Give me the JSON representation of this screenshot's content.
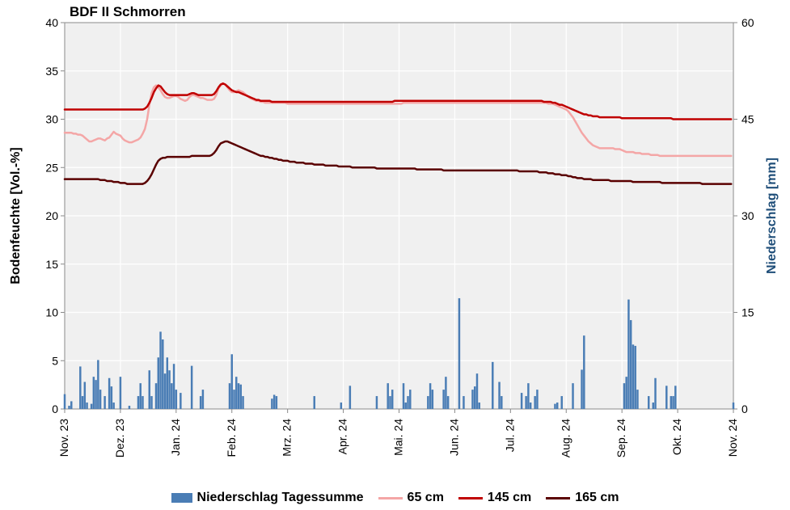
{
  "title": "BDF II Schmorren",
  "y_left": {
    "label": "Bodenfeuchte [Vol.-%]",
    "min": 0,
    "max": 40,
    "step": 5,
    "fontsize": 16,
    "color": "#000000"
  },
  "y_right": {
    "label": "Niederschlag [mm]",
    "min": 0,
    "max": 60,
    "step": 15,
    "fontsize": 16,
    "color": "#1f4e79",
    "tick_color": "#2e5b8a"
  },
  "x": {
    "labels": [
      "Nov. 23",
      "Dez. 23",
      "Jan. 24",
      "Feb. 24",
      "Mrz. 24",
      "Apr. 24",
      "Mai. 24",
      "Jun. 24",
      "Jul. 24",
      "Aug. 24",
      "Sep. 24",
      "Okt. 24",
      "Nov. 24"
    ],
    "fontsize": 14
  },
  "plot": {
    "bg": "#f0f0f0",
    "grid": "#ffffff"
  },
  "legend": {
    "bar_label": "Niederschlag Tagessumme",
    "series": [
      {
        "label": "65 cm",
        "color": "#f4a6a6"
      },
      {
        "label": "145 cm",
        "color": "#c00000"
      },
      {
        "label": "165 cm",
        "color": "#5a0000"
      }
    ],
    "bar_color": "#4a7db5"
  },
  "precip": [
    2.3,
    0,
    0.5,
    1.2,
    0,
    0,
    0,
    6.6,
    2,
    4.2,
    1,
    0,
    0.8,
    5,
    4.5,
    7.6,
    3,
    0,
    2,
    0,
    4.8,
    3.5,
    1,
    0,
    0,
    5,
    0,
    0,
    0,
    0.5,
    0,
    0,
    0,
    2,
    4,
    2,
    0,
    0,
    6,
    2,
    0,
    4,
    8,
    12,
    10.8,
    5.5,
    8,
    6,
    4,
    7,
    3,
    0,
    2.5,
    0,
    0,
    0,
    0,
    6.7,
    0,
    0,
    0,
    2,
    3,
    0,
    0,
    0,
    0,
    0,
    0,
    0,
    0,
    0,
    0,
    0,
    4,
    8.5,
    3,
    5,
    4,
    3.8,
    2,
    0,
    0,
    0,
    0,
    0,
    0,
    0,
    0,
    0,
    0,
    0,
    0,
    1.6,
    2.2,
    2,
    0,
    0,
    0,
    0,
    0,
    0,
    0,
    0,
    0,
    0,
    0,
    0,
    0,
    0,
    0,
    0,
    2,
    0,
    0,
    0,
    0,
    0,
    0,
    0,
    0,
    0,
    0,
    0,
    1,
    0,
    0,
    0,
    3.6,
    0,
    0,
    0,
    0,
    0,
    0,
    0,
    0,
    0,
    0,
    0,
    2,
    0,
    0,
    0,
    0,
    4,
    2,
    3,
    0,
    0,
    0,
    0,
    4,
    1,
    2,
    3,
    0,
    0,
    0,
    0,
    0,
    0,
    0,
    2,
    4,
    3,
    0,
    0,
    0,
    0,
    3,
    5,
    2,
    0,
    0,
    0,
    0,
    17.2,
    0,
    2,
    0,
    0,
    0,
    3,
    3.5,
    5.5,
    1,
    0,
    0,
    0,
    0,
    0,
    7.3,
    0,
    0,
    4.2,
    2,
    0,
    0,
    0,
    0,
    0,
    0,
    0,
    0,
    2.5,
    0,
    2,
    4,
    1,
    0,
    2,
    3,
    0,
    0,
    0,
    0,
    0,
    0,
    0,
    0.8,
    1,
    0,
    2,
    0,
    0,
    0,
    0,
    4,
    0,
    0,
    0,
    6.1,
    11.4,
    0,
    0,
    0,
    0,
    0,
    0,
    0,
    0,
    0,
    0,
    0,
    0,
    0,
    0,
    0,
    0,
    0,
    4,
    5,
    17,
    13.8,
    10,
    9.8,
    3,
    0,
    0,
    0,
    0,
    2,
    0,
    1,
    4.8,
    0,
    0,
    0,
    0,
    3.6,
    0,
    2,
    2,
    3.6,
    0,
    0,
    0,
    0,
    0,
    0,
    0,
    0,
    0,
    0,
    0,
    0,
    0,
    0,
    0,
    0,
    0,
    0,
    0,
    0,
    0,
    0,
    0,
    0,
    0,
    1
  ],
  "series_65cm": {
    "color": "#f4a6a6",
    "width": 2.5,
    "values": [
      28.6,
      28.6,
      28.6,
      28.6,
      28.5,
      28.5,
      28.4,
      28.4,
      28.3,
      28.1,
      27.9,
      27.7,
      27.7,
      27.8,
      27.9,
      28.0,
      28.0,
      27.9,
      27.8,
      28.0,
      28.1,
      28.4,
      28.7,
      28.5,
      28.4,
      28.3,
      28.0,
      27.8,
      27.7,
      27.6,
      27.6,
      27.7,
      27.8,
      27.9,
      28.1,
      28.5,
      29.0,
      30.0,
      31.5,
      32.7,
      33.3,
      33.5,
      33.3,
      33.0,
      32.6,
      32.3,
      32.2,
      32.2,
      32.3,
      32.4,
      32.4,
      32.3,
      32.1,
      32.0,
      31.9,
      32.0,
      32.3,
      32.5,
      32.5,
      32.4,
      32.3,
      32.2,
      32.2,
      32.1,
      32.0,
      32.0,
      32.0,
      32.1,
      32.5,
      33.2,
      33.5,
      33.7,
      33.6,
      33.3,
      33.0,
      32.8,
      32.8,
      32.9,
      33.0,
      32.9,
      32.8,
      32.6,
      32.4,
      32.2,
      32.1,
      32.0,
      31.9,
      31.9,
      31.8,
      31.8,
      31.7,
      31.7,
      31.7,
      31.7,
      31.7,
      31.7,
      31.7,
      31.7,
      31.7,
      31.7,
      31.6,
      31.6,
      31.6,
      31.6,
      31.6,
      31.6,
      31.6,
      31.6,
      31.6,
      31.6,
      31.6,
      31.6,
      31.6,
      31.6,
      31.6,
      31.6,
      31.6,
      31.6,
      31.6,
      31.6,
      31.6,
      31.6,
      31.6,
      31.6,
      31.6,
      31.6,
      31.6,
      31.6,
      31.6,
      31.6,
      31.6,
      31.6,
      31.6,
      31.6,
      31.6,
      31.6,
      31.6,
      31.6,
      31.6,
      31.6,
      31.6,
      31.6,
      31.6,
      31.6,
      31.6,
      31.6,
      31.6,
      31.6,
      31.6,
      31.6,
      31.6,
      31.6,
      31.7,
      31.7,
      31.7,
      31.7,
      31.7,
      31.7,
      31.7,
      31.7,
      31.7,
      31.7,
      31.7,
      31.7,
      31.7,
      31.7,
      31.7,
      31.7,
      31.7,
      31.7,
      31.7,
      31.7,
      31.7,
      31.7,
      31.7,
      31.7,
      31.7,
      31.7,
      31.7,
      31.7,
      31.7,
      31.7,
      31.7,
      31.7,
      31.7,
      31.7,
      31.7,
      31.7,
      31.7,
      31.7,
      31.7,
      31.7,
      31.7,
      31.7,
      31.7,
      31.7,
      31.7,
      31.7,
      31.7,
      31.7,
      31.7,
      31.7,
      31.7,
      31.7,
      31.7,
      31.7,
      31.7,
      31.7,
      31.7,
      31.7,
      31.7,
      31.7,
      31.7,
      31.7,
      31.7,
      31.7,
      31.7,
      31.6,
      31.6,
      31.6,
      31.5,
      31.4,
      31.3,
      31.2,
      31.1,
      31.0,
      30.8,
      30.5,
      30.2,
      29.8,
      29.4,
      29.0,
      28.6,
      28.3,
      28.0,
      27.7,
      27.5,
      27.3,
      27.2,
      27.1,
      27.0,
      27.0,
      27.0,
      27.0,
      27.0,
      27.0,
      27.0,
      26.9,
      26.9,
      26.9,
      26.8,
      26.7,
      26.6,
      26.6,
      26.6,
      26.6,
      26.5,
      26.5,
      26.5,
      26.4,
      26.4,
      26.4,
      26.4,
      26.3,
      26.3,
      26.3,
      26.3,
      26.2,
      26.2,
      26.2,
      26.2,
      26.2,
      26.2,
      26.2,
      26.2,
      26.2,
      26.2,
      26.2,
      26.2,
      26.2,
      26.2,
      26.2,
      26.2,
      26.2,
      26.2,
      26.2,
      26.2,
      26.2,
      26.2,
      26.2,
      26.2,
      26.2,
      26.2,
      26.2,
      26.2,
      26.2,
      26.2,
      26.2,
      26.2,
      26.2
    ]
  },
  "series_145cm": {
    "color": "#c00000",
    "width": 2.5,
    "values": [
      31.0,
      31.0,
      31.0,
      31.0,
      31.0,
      31.0,
      31.0,
      31.0,
      31.0,
      31.0,
      31.0,
      31.0,
      31.0,
      31.0,
      31.0,
      31.0,
      31.0,
      31.0,
      31.0,
      31.0,
      31.0,
      31.0,
      31.0,
      31.0,
      31.0,
      31.0,
      31.0,
      31.0,
      31.0,
      31.0,
      31.0,
      31.0,
      31.0,
      31.0,
      31.0,
      31.0,
      31.1,
      31.3,
      31.7,
      32.2,
      32.8,
      33.2,
      33.5,
      33.4,
      33.1,
      32.8,
      32.6,
      32.5,
      32.5,
      32.5,
      32.5,
      32.5,
      32.5,
      32.5,
      32.5,
      32.5,
      32.6,
      32.7,
      32.7,
      32.6,
      32.5,
      32.5,
      32.5,
      32.5,
      32.5,
      32.5,
      32.5,
      32.6,
      32.9,
      33.3,
      33.6,
      33.7,
      33.6,
      33.4,
      33.2,
      33.0,
      32.9,
      32.8,
      32.8,
      32.7,
      32.6,
      32.5,
      32.4,
      32.3,
      32.2,
      32.1,
      32.0,
      32.0,
      31.9,
      31.9,
      31.9,
      31.9,
      31.9,
      31.8,
      31.8,
      31.8,
      31.8,
      31.8,
      31.8,
      31.8,
      31.8,
      31.8,
      31.8,
      31.8,
      31.8,
      31.8,
      31.8,
      31.8,
      31.8,
      31.8,
      31.8,
      31.8,
      31.8,
      31.8,
      31.8,
      31.8,
      31.8,
      31.8,
      31.8,
      31.8,
      31.8,
      31.8,
      31.8,
      31.8,
      31.8,
      31.8,
      31.8,
      31.8,
      31.8,
      31.8,
      31.8,
      31.8,
      31.8,
      31.8,
      31.8,
      31.8,
      31.8,
      31.8,
      31.8,
      31.8,
      31.8,
      31.8,
      31.8,
      31.8,
      31.8,
      31.8,
      31.8,
      31.8,
      31.9,
      31.9,
      31.9,
      31.9,
      31.9,
      31.9,
      31.9,
      31.9,
      31.9,
      31.9,
      31.9,
      31.9,
      31.9,
      31.9,
      31.9,
      31.9,
      31.9,
      31.9,
      31.9,
      31.9,
      31.9,
      31.9,
      31.9,
      31.9,
      31.9,
      31.9,
      31.9,
      31.9,
      31.9,
      31.9,
      31.9,
      31.9,
      31.9,
      31.9,
      31.9,
      31.9,
      31.9,
      31.9,
      31.9,
      31.9,
      31.9,
      31.9,
      31.9,
      31.9,
      31.9,
      31.9,
      31.9,
      31.9,
      31.9,
      31.9,
      31.9,
      31.9,
      31.9,
      31.9,
      31.9,
      31.9,
      31.9,
      31.9,
      31.9,
      31.9,
      31.9,
      31.9,
      31.9,
      31.9,
      31.9,
      31.9,
      31.9,
      31.8,
      31.8,
      31.8,
      31.8,
      31.7,
      31.7,
      31.6,
      31.5,
      31.5,
      31.4,
      31.3,
      31.2,
      31.1,
      31.0,
      30.9,
      30.8,
      30.7,
      30.6,
      30.5,
      30.5,
      30.4,
      30.4,
      30.3,
      30.3,
      30.3,
      30.2,
      30.2,
      30.2,
      30.2,
      30.2,
      30.2,
      30.2,
      30.2,
      30.2,
      30.2,
      30.1,
      30.1,
      30.1,
      30.1,
      30.1,
      30.1,
      30.1,
      30.1,
      30.1,
      30.1,
      30.1,
      30.1,
      30.1,
      30.1,
      30.1,
      30.1,
      30.1,
      30.1,
      30.1,
      30.1,
      30.1,
      30.1,
      30.1,
      30.0,
      30.0,
      30.0,
      30.0,
      30.0,
      30.0,
      30.0,
      30.0,
      30.0,
      30.0,
      30.0,
      30.0,
      30.0,
      30.0,
      30.0,
      30.0,
      30.0,
      30.0,
      30.0,
      30.0,
      30.0,
      30.0,
      30.0,
      30.0,
      30.0,
      30.0,
      30.0
    ]
  },
  "series_165cm": {
    "color": "#5a0000",
    "width": 2.5,
    "values": [
      23.8,
      23.8,
      23.8,
      23.8,
      23.8,
      23.8,
      23.8,
      23.8,
      23.8,
      23.8,
      23.8,
      23.8,
      23.8,
      23.8,
      23.8,
      23.8,
      23.7,
      23.7,
      23.7,
      23.6,
      23.6,
      23.6,
      23.5,
      23.5,
      23.5,
      23.4,
      23.4,
      23.4,
      23.3,
      23.3,
      23.3,
      23.3,
      23.3,
      23.3,
      23.3,
      23.3,
      23.4,
      23.6,
      23.9,
      24.3,
      24.8,
      25.3,
      25.7,
      25.9,
      26.0,
      26.0,
      26.1,
      26.1,
      26.1,
      26.1,
      26.1,
      26.1,
      26.1,
      26.1,
      26.1,
      26.1,
      26.1,
      26.2,
      26.2,
      26.2,
      26.2,
      26.2,
      26.2,
      26.2,
      26.2,
      26.2,
      26.3,
      26.5,
      26.8,
      27.2,
      27.5,
      27.6,
      27.7,
      27.7,
      27.6,
      27.5,
      27.4,
      27.3,
      27.2,
      27.1,
      27.0,
      26.9,
      26.8,
      26.7,
      26.6,
      26.5,
      26.4,
      26.3,
      26.2,
      26.2,
      26.1,
      26.1,
      26.0,
      26.0,
      25.9,
      25.9,
      25.8,
      25.8,
      25.7,
      25.7,
      25.7,
      25.6,
      25.6,
      25.6,
      25.5,
      25.5,
      25.5,
      25.5,
      25.4,
      25.4,
      25.4,
      25.4,
      25.3,
      25.3,
      25.3,
      25.3,
      25.3,
      25.2,
      25.2,
      25.2,
      25.2,
      25.2,
      25.2,
      25.1,
      25.1,
      25.1,
      25.1,
      25.1,
      25.1,
      25.0,
      25.0,
      25.0,
      25.0,
      25.0,
      25.0,
      25.0,
      25.0,
      25.0,
      25.0,
      25.0,
      24.9,
      24.9,
      24.9,
      24.9,
      24.9,
      24.9,
      24.9,
      24.9,
      24.9,
      24.9,
      24.9,
      24.9,
      24.9,
      24.9,
      24.9,
      24.9,
      24.9,
      24.9,
      24.8,
      24.8,
      24.8,
      24.8,
      24.8,
      24.8,
      24.8,
      24.8,
      24.8,
      24.8,
      24.8,
      24.8,
      24.7,
      24.7,
      24.7,
      24.7,
      24.7,
      24.7,
      24.7,
      24.7,
      24.7,
      24.7,
      24.7,
      24.7,
      24.7,
      24.7,
      24.7,
      24.7,
      24.7,
      24.7,
      24.7,
      24.7,
      24.7,
      24.7,
      24.7,
      24.7,
      24.7,
      24.7,
      24.7,
      24.7,
      24.7,
      24.7,
      24.7,
      24.7,
      24.7,
      24.7,
      24.6,
      24.6,
      24.6,
      24.6,
      24.6,
      24.6,
      24.6,
      24.6,
      24.6,
      24.5,
      24.5,
      24.5,
      24.5,
      24.4,
      24.4,
      24.4,
      24.3,
      24.3,
      24.3,
      24.2,
      24.2,
      24.2,
      24.1,
      24.1,
      24.0,
      24.0,
      23.9,
      23.9,
      23.9,
      23.8,
      23.8,
      23.8,
      23.8,
      23.7,
      23.7,
      23.7,
      23.7,
      23.7,
      23.7,
      23.7,
      23.7,
      23.6,
      23.6,
      23.6,
      23.6,
      23.6,
      23.6,
      23.6,
      23.6,
      23.6,
      23.6,
      23.5,
      23.5,
      23.5,
      23.5,
      23.5,
      23.5,
      23.5,
      23.5,
      23.5,
      23.5,
      23.5,
      23.5,
      23.5,
      23.4,
      23.4,
      23.4,
      23.4,
      23.4,
      23.4,
      23.4,
      23.4,
      23.4,
      23.4,
      23.4,
      23.4,
      23.4,
      23.4,
      23.4,
      23.4,
      23.4,
      23.4,
      23.3,
      23.3,
      23.3,
      23.3,
      23.3,
      23.3,
      23.3,
      23.3,
      23.3,
      23.3,
      23.3,
      23.3,
      23.3,
      23.3
    ]
  }
}
